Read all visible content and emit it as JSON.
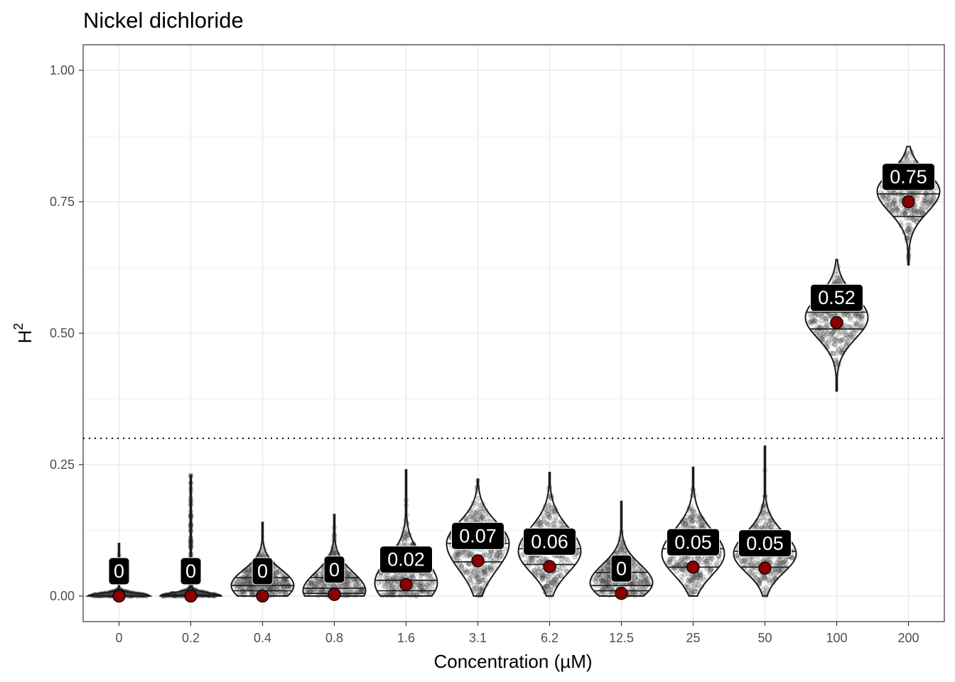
{
  "chart_data": {
    "type": "violin",
    "title": "Nickel dichloride",
    "xlabel": "Concentration (µM)",
    "ylabel": "H",
    "ylabel_superscript": "2",
    "ylim": [
      -0.05,
      1.05
    ],
    "yticks": [
      0,
      0.25,
      0.5,
      0.75,
      1.0
    ],
    "ytick_labels": [
      "0.00",
      "0.25",
      "0.50",
      "0.75",
      "1.00"
    ],
    "threshold_line": 0.3,
    "grid": true,
    "categories": [
      "0",
      "0.2",
      "0.4",
      "0.8",
      "1.6",
      "3.1",
      "6.2",
      "12.5",
      "25",
      "50",
      "100",
      "200"
    ],
    "means": [
      0,
      0,
      0,
      0.003,
      0.022,
      0.067,
      0.056,
      0.005,
      0.055,
      0.053,
      0.52,
      0.75
    ],
    "labels": [
      "0",
      "0",
      "0",
      "0",
      "0.02",
      "0.07",
      "0.06",
      "0",
      "0.05",
      "0.05",
      "0.52",
      "0.75"
    ],
    "distributions": [
      {
        "min": 0,
        "max": 0.1,
        "mode": 0,
        "sd_low": 0.01,
        "sd_high": 0.005,
        "quantiles": [
          0,
          0
        ]
      },
      {
        "min": 0,
        "max": 0.23,
        "mode": 0,
        "sd_low": 0.01,
        "sd_high": 0.006,
        "quantiles": [
          0,
          0.002
        ]
      },
      {
        "min": 0,
        "max": 0.14,
        "mode": 0.02,
        "sd_low": 0.03,
        "sd_high": 0.03,
        "quantiles": [
          0.01,
          0.02,
          0.035
        ]
      },
      {
        "min": 0,
        "max": 0.155,
        "mode": 0.01,
        "sd_low": 0.03,
        "sd_high": 0.035,
        "quantiles": [
          0.005,
          0.015,
          0.035
        ]
      },
      {
        "min": 0,
        "max": 0.24,
        "mode": 0.025,
        "sd_low": 0.04,
        "sd_high": 0.045,
        "quantiles": [
          0.01,
          0.03,
          0.06
        ]
      },
      {
        "min": 0,
        "max": 0.222,
        "mode": 0.1,
        "sd_low": 0.05,
        "sd_high": 0.04,
        "quantiles": [
          0.065,
          0.1
        ]
      },
      {
        "min": 0,
        "max": 0.235,
        "mode": 0.085,
        "sd_low": 0.04,
        "sd_high": 0.045,
        "quantiles": [
          0.06,
          0.09
        ]
      },
      {
        "min": 0,
        "max": 0.18,
        "mode": 0.025,
        "sd_low": 0.03,
        "sd_high": 0.035,
        "quantiles": [
          0.01,
          0.02,
          0.045
        ]
      },
      {
        "min": 0,
        "max": 0.245,
        "mode": 0.08,
        "sd_low": 0.04,
        "sd_high": 0.045,
        "quantiles": [
          0.055,
          0.09
        ]
      },
      {
        "min": 0,
        "max": 0.285,
        "mode": 0.08,
        "sd_low": 0.035,
        "sd_high": 0.04,
        "quantiles": [
          0.055,
          0.085
        ]
      },
      {
        "min": 0.39,
        "max": 0.64,
        "mode": 0.53,
        "sd_low": 0.04,
        "sd_high": 0.04,
        "quantiles": [
          0.508,
          0.54
        ]
      },
      {
        "min": 0.63,
        "max": 0.855,
        "mode": 0.77,
        "sd_low": 0.04,
        "sd_high": 0.035,
        "quantiles": [
          0.722,
          0.765
        ]
      }
    ],
    "colors": {
      "mean_point": "#8b0000",
      "violin_outline": "#1a1a1a",
      "grid": "#ebebeb",
      "label_bg": "#000000"
    }
  }
}
